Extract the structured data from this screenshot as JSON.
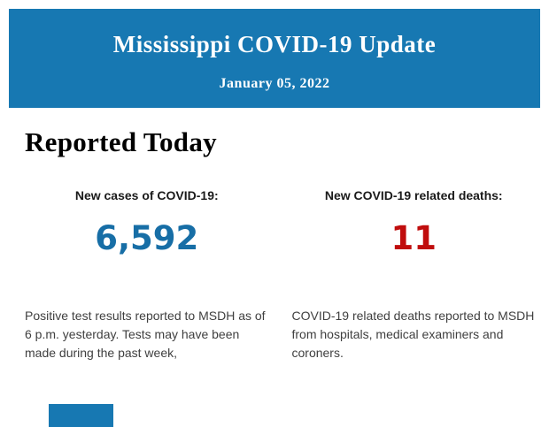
{
  "header": {
    "title": "Mississippi COVID-19 Update",
    "date": "January 05, 2022",
    "bg_color": "#1778b2",
    "text_color": "#ffffff"
  },
  "main": {
    "heading": "Reported Today",
    "stats": [
      {
        "label": "New cases of COVID-19:",
        "value": "6,592",
        "value_color": "#176ea6",
        "description": "Positive test results reported to MSDH as of 6 p.m. yesterday. Tests may have been made during the past week,"
      },
      {
        "label": "New COVID-19 related deaths:",
        "value": "11",
        "value_color": "#c00d0d",
        "description": "COVID-19 related deaths reported to MSDH from hospitals, medical examiners and coroners."
      }
    ]
  },
  "footer": {
    "cutoff_banner_color": "#1778b2"
  }
}
